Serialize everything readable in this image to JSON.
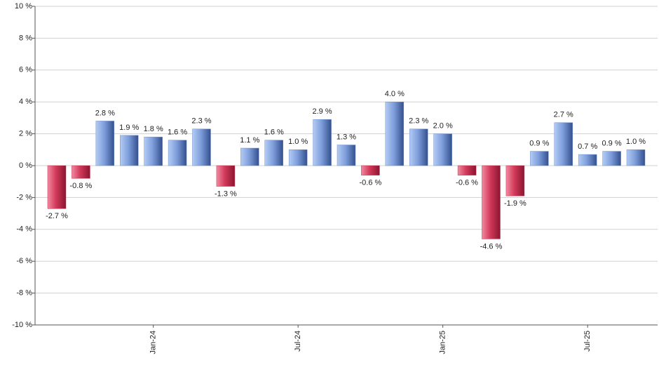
{
  "chart_data": {
    "type": "bar",
    "categories": [
      null,
      null,
      null,
      null,
      "Jan-24",
      null,
      null,
      null,
      null,
      null,
      "Jul-24",
      null,
      null,
      null,
      null,
      null,
      "Jan-25",
      null,
      null,
      null,
      null,
      null,
      "Jul-25",
      null,
      null
    ],
    "values": [
      -2.7,
      -0.8,
      2.8,
      1.9,
      1.8,
      1.6,
      2.3,
      -1.3,
      1.1,
      1.6,
      1.0,
      2.9,
      1.3,
      -0.6,
      4.0,
      2.3,
      2.0,
      -0.6,
      -4.6,
      -1.9,
      0.9,
      2.7,
      0.7,
      0.9,
      1.0
    ],
    "value_labels": [
      "-2.7 %",
      "-0.8 %",
      "2.8 %",
      "1.9 %",
      "1.8 %",
      "1.6 %",
      "2.3 %",
      "-1.3 %",
      "1.1 %",
      "1.6 %",
      "1.0 %",
      "2.9 %",
      "1.3 %",
      "-0.6 %",
      "4.0 %",
      "2.3 %",
      "2.0 %",
      "-0.6 %",
      "-4.6 %",
      "-1.9 %",
      "0.9 %",
      "2.7 %",
      "0.7 %",
      "0.9 %",
      "1.0 %"
    ],
    "positive_color": "#6f8fd0",
    "negative_color": "#c8304f",
    "ylim": [
      -10,
      10
    ],
    "yticks": [
      {
        "value": -10,
        "label": "-10 %"
      },
      {
        "value": -8,
        "label": "-8 %"
      },
      {
        "value": -6,
        "label": "-6 %"
      },
      {
        "value": -4,
        "label": "-4 %"
      },
      {
        "value": -2,
        "label": "-2 %"
      },
      {
        "value": 0,
        "label": "0 %"
      },
      {
        "value": 2,
        "label": "2 %"
      },
      {
        "value": 4,
        "label": "4 %"
      },
      {
        "value": 6,
        "label": "6 %"
      },
      {
        "value": 8,
        "label": "8 %"
      },
      {
        "value": 10,
        "label": "10 %"
      }
    ],
    "grid": true
  }
}
